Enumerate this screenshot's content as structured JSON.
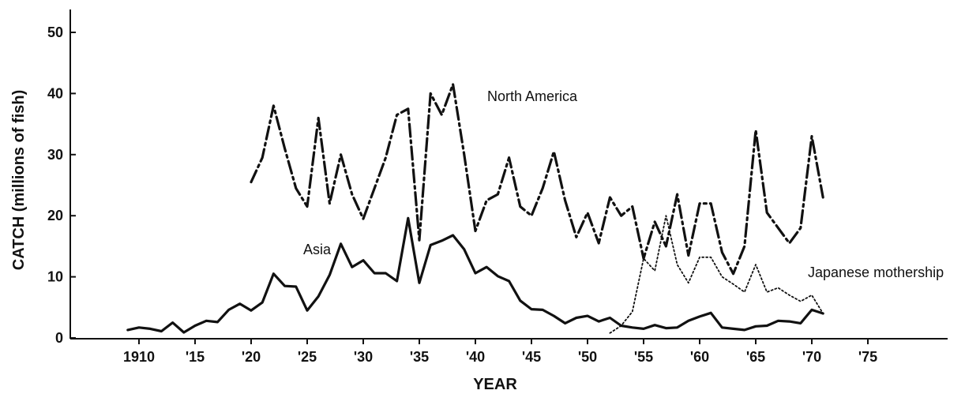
{
  "chart_data": {
    "type": "line",
    "title": "",
    "xlabel": "YEAR",
    "ylabel": "CATCH (millions of fish)",
    "xlim": [
      1905,
      1975
    ],
    "ylim": [
      0,
      50
    ],
    "x_ticks": [
      1910,
      1915,
      1920,
      1925,
      1930,
      1935,
      1940,
      1945,
      1950,
      1955,
      1960,
      1965,
      1970,
      1975
    ],
    "x_tick_labels": [
      "1910",
      "'15",
      "'20",
      "'25",
      "'30",
      "'35",
      "'40",
      "'45",
      "'50",
      "'55",
      "'60",
      "'65",
      "'70",
      "'75"
    ],
    "y_ticks": [
      0,
      10,
      20,
      30,
      40,
      50
    ],
    "y_tick_labels": [
      "0",
      "10",
      "20",
      "30",
      "40",
      "50"
    ],
    "grid": false,
    "legend": "none",
    "annotations": [
      "North America",
      "Asia",
      "Japanese mothership"
    ],
    "series": [
      {
        "name": "North America",
        "style": "dash-dot",
        "color": "#111111",
        "x": [
          1920,
          1921,
          1922,
          1923,
          1924,
          1925,
          1926,
          1927,
          1928,
          1929,
          1930,
          1931,
          1932,
          1933,
          1934,
          1935,
          1936,
          1937,
          1938,
          1939,
          1940,
          1941,
          1942,
          1943,
          1944,
          1945,
          1946,
          1947,
          1948,
          1949,
          1950,
          1951,
          1952,
          1953,
          1954,
          1955,
          1956,
          1957,
          1958,
          1959,
          1960,
          1961,
          1962,
          1963,
          1964,
          1965,
          1966,
          1967,
          1968,
          1969,
          1970,
          1971
        ],
        "y": [
          25.5,
          29.5,
          38,
          31,
          24.5,
          21.5,
          36,
          22,
          30,
          23.5,
          19.5,
          24.5,
          29.5,
          36.5,
          37.5,
          16,
          40,
          36.5,
          41.5,
          30,
          17.5,
          22.5,
          23.5,
          29.5,
          21.5,
          20,
          24.5,
          30.5,
          22.5,
          16.5,
          20.5,
          15.5,
          23,
          20,
          21.5,
          13,
          19,
          15,
          23.5,
          13.5,
          22,
          22,
          14,
          10.5,
          15,
          34,
          20.5,
          18,
          15.5,
          18,
          33,
          23
        ]
      },
      {
        "name": "Asia",
        "style": "solid",
        "color": "#111111",
        "x": [
          1909,
          1910,
          1911,
          1912,
          1913,
          1914,
          1915,
          1916,
          1917,
          1918,
          1919,
          1920,
          1921,
          1922,
          1923,
          1924,
          1925,
          1926,
          1927,
          1928,
          1929,
          1930,
          1931,
          1932,
          1933,
          1934,
          1935,
          1936,
          1937,
          1938,
          1939,
          1940,
          1941,
          1942,
          1943,
          1944,
          1945,
          1946,
          1947,
          1948,
          1949,
          1950,
          1951,
          1952,
          1953,
          1954,
          1955,
          1956,
          1957,
          1958,
          1959,
          1960,
          1961,
          1962,
          1963,
          1964,
          1965,
          1966,
          1967,
          1968,
          1969,
          1970,
          1971
        ],
        "y": [
          1.3,
          1.7,
          1.5,
          1.1,
          2.5,
          0.9,
          2,
          2.8,
          2.6,
          4.6,
          5.6,
          4.5,
          5.8,
          10.5,
          8.5,
          8.4,
          4.5,
          6.8,
          10.3,
          15.4,
          11.6,
          12.7,
          10.6,
          10.6,
          9.3,
          19.6,
          9,
          15.2,
          15.9,
          16.8,
          14.5,
          10.6,
          11.6,
          10.1,
          9.3,
          6.1,
          4.7,
          4.6,
          3.6,
          2.4,
          3.3,
          3.6,
          2.7,
          3.3,
          2,
          1.7,
          1.5,
          2.1,
          1.6,
          1.7,
          2.8,
          3.5,
          4.1,
          1.7,
          1.5,
          1.3,
          1.9,
          2,
          2.8,
          2.7,
          2.4,
          4.6,
          4
        ]
      },
      {
        "name": "Japanese mothership",
        "style": "dotted",
        "color": "#111111",
        "x": [
          1952,
          1953,
          1954,
          1955,
          1956,
          1957,
          1958,
          1959,
          1960,
          1961,
          1962,
          1963,
          1964,
          1965,
          1966,
          1967,
          1968,
          1969,
          1970,
          1971
        ],
        "y": [
          0.8,
          2,
          4.3,
          13,
          11,
          20,
          12,
          9,
          13.2,
          13.2,
          10,
          8.8,
          7.5,
          12,
          7.5,
          8.2,
          7,
          6,
          7,
          4
        ]
      }
    ]
  }
}
